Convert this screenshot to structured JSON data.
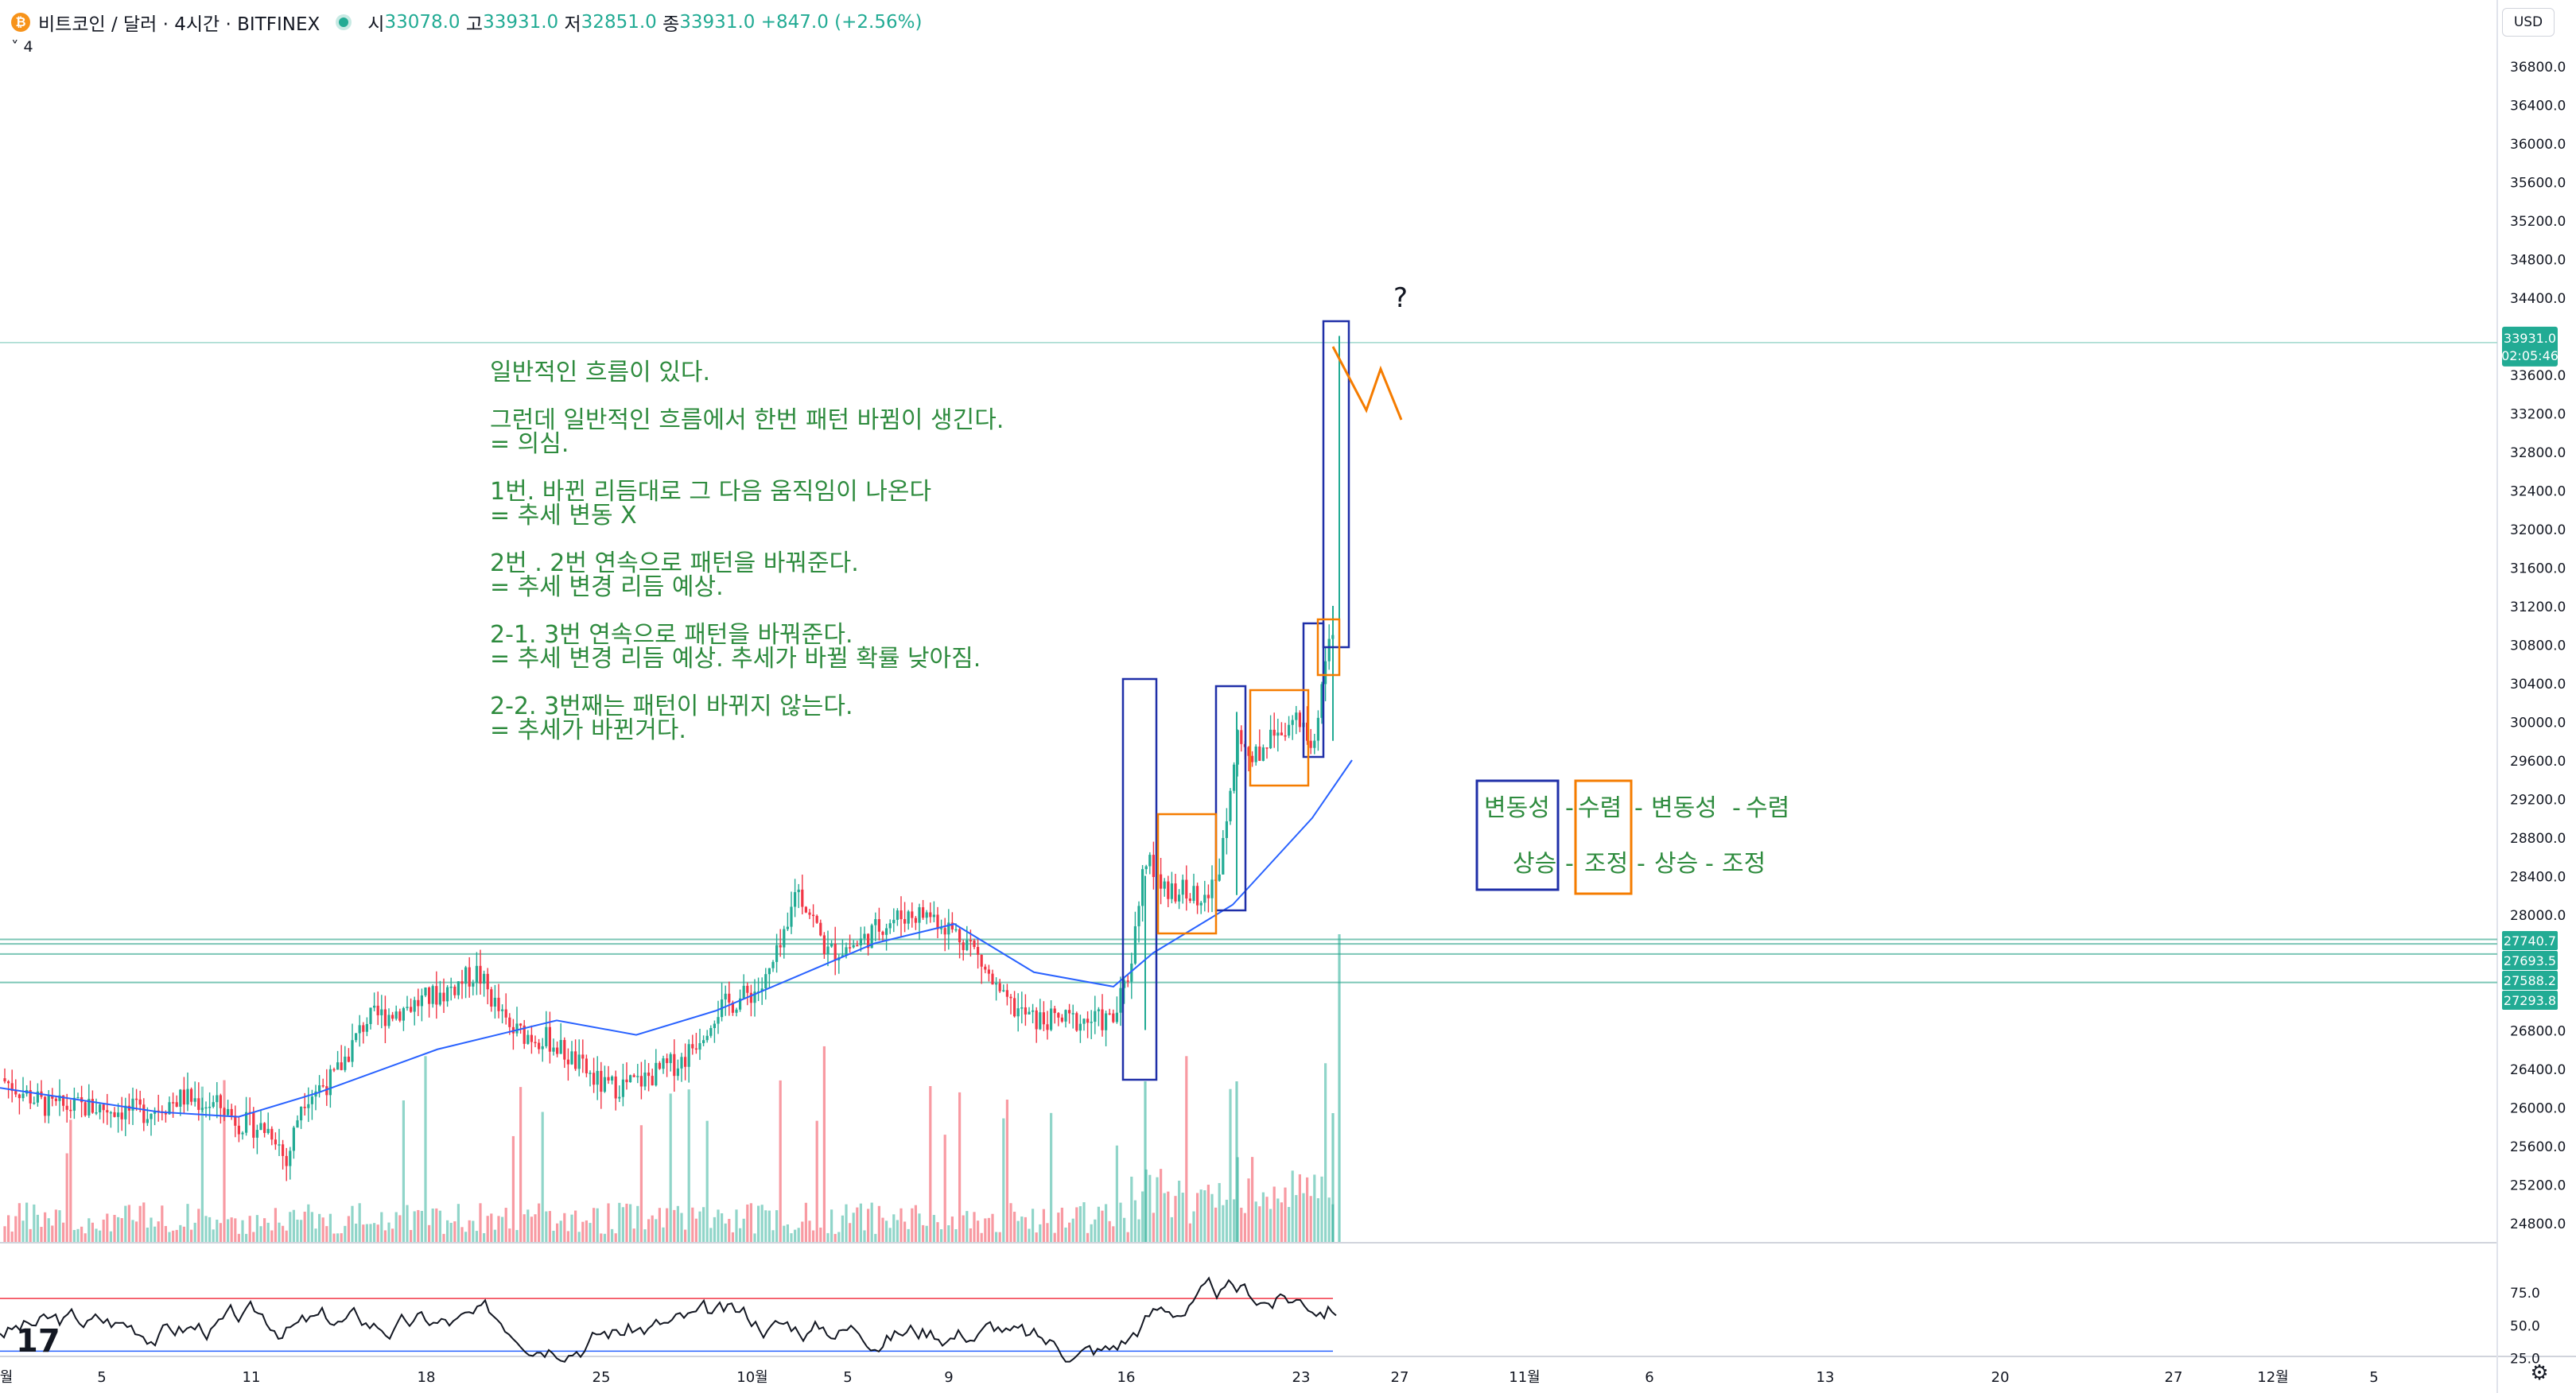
{
  "header": {
    "symbol": "비트코인 / 달러 · 4시간 · BITFINEX",
    "coin_icon": "bitcoin-icon",
    "open_label": "시",
    "open": "33078.0",
    "high_label": "고",
    "high": "33931.0",
    "low_label": "저",
    "low": "32851.0",
    "close_label": "종",
    "close": "33931.0",
    "change": "+847.0 (+2.56%)",
    "indicator_toggle": "˅ 4"
  },
  "currency": "USD",
  "colors": {
    "up": "#22ab94",
    "down": "#f23645",
    "ma": "#2962ff",
    "annotation_text": "#2e8b3e",
    "blue_box": "#1f2fa8",
    "orange_box": "#f57c00"
  },
  "price_axis": [
    "36800.0",
    "36400.0",
    "36000.0",
    "35600.0",
    "35200.0",
    "34800.0",
    "34400.0",
    "33600.0",
    "33200.0",
    "32800.0",
    "32400.0",
    "32000.0",
    "31600.0",
    "31200.0",
    "30800.0",
    "30400.0",
    "30000.0",
    "29600.0",
    "29200.0",
    "28800.0",
    "28400.0",
    "28000.0",
    "26800.0",
    "26400.0",
    "26000.0",
    "25600.0",
    "25200.0",
    "24800.0"
  ],
  "price_badges": {
    "last": "33931.0",
    "countdown": "02:05:46",
    "levels": [
      "27740.7",
      "27693.5",
      "27588.2",
      "27293.8"
    ]
  },
  "rsi_axis": [
    "75.0",
    "50.0",
    "25.0"
  ],
  "time_axis": [
    "월",
    "5",
    "11",
    "18",
    "25",
    "10월",
    "5",
    "9",
    "16",
    "23",
    "27",
    "11월",
    "6",
    "13",
    "20",
    "27",
    "12월",
    "5"
  ],
  "annotation": {
    "lines": [
      "일반적인 흐름이 있다.",
      "",
      "그런데 일반적인 흐름에서 한번 패턴 바뀜이 생긴다.",
      "= 의심.",
      "",
      "1번. 바뀐 리듬대로 그 다음 움직임이 나온다",
      "= 추세 변동 X",
      "",
      "2번 . 2번 연속으로 패턴을 바꿔준다.",
      "= 추세 변경 리듬 예상.",
      "",
      "2-1. 3번 연속으로 패턴을 바꿔준다.",
      "= 추세 변경 리듬 예상. 추세가 바뀔 확률 낮아짐.",
      "",
      "2-2. 3번째는 패턴이 바뀌지 않는다.",
      "= 추세가 바뀐거다."
    ],
    "question_mark": "?",
    "legend_row1": [
      "변동성",
      "-",
      "수렴",
      "-",
      "변동성",
      "-",
      "수렴"
    ],
    "legend_row2": [
      "상승",
      "-",
      "조정",
      "-",
      "상승",
      "-",
      "조정"
    ]
  },
  "chart_data": {
    "type": "candlestick",
    "symbol": "비트코인 / 달러",
    "interval": "4시간",
    "exchange": "BITFINEX",
    "last_price": 33931.0,
    "horizontal_levels": [
      27740.7,
      27693.5,
      27588.2,
      27293.8
    ],
    "price_range": [
      24600,
      37000
    ],
    "rsi_levels": [
      70,
      30
    ],
    "rsi_range": [
      20,
      90
    ],
    "ma_approx": [
      [
        0,
        26200
      ],
      [
        200,
        25950
      ],
      [
        300,
        25900
      ],
      [
        400,
        26150
      ],
      [
        550,
        26600
      ],
      [
        700,
        26900
      ],
      [
        800,
        26750
      ],
      [
        900,
        27000
      ],
      [
        1000,
        27350
      ],
      [
        1100,
        27700
      ],
      [
        1200,
        27900
      ],
      [
        1300,
        27400
      ],
      [
        1400,
        27250
      ],
      [
        1450,
        27600
      ],
      [
        1550,
        28100
      ],
      [
        1650,
        29000
      ],
      [
        1700,
        29600
      ]
    ],
    "close_path": [
      [
        0,
        26300
      ],
      [
        60,
        26000
      ],
      [
        120,
        26000
      ],
      [
        180,
        25950
      ],
      [
        230,
        26100
      ],
      [
        280,
        26000
      ],
      [
        300,
        25850
      ],
      [
        345,
        25750
      ],
      [
        360,
        25400
      ],
      [
        380,
        26100
      ],
      [
        420,
        26300
      ],
      [
        460,
        26900
      ],
      [
        500,
        27000
      ],
      [
        560,
        27200
      ],
      [
        600,
        27400
      ],
      [
        640,
        26800
      ],
      [
        690,
        26700
      ],
      [
        760,
        26200
      ],
      [
        800,
        26250
      ],
      [
        860,
        26500
      ],
      [
        900,
        27000
      ],
      [
        960,
        27250
      ],
      [
        990,
        27800
      ],
      [
        1000,
        28300
      ],
      [
        1020,
        28000
      ],
      [
        1040,
        27600
      ],
      [
        1080,
        27700
      ],
      [
        1110,
        27900
      ],
      [
        1140,
        28000
      ],
      [
        1170,
        28000
      ],
      [
        1220,
        27700
      ],
      [
        1260,
        27100
      ],
      [
        1300,
        26900
      ],
      [
        1330,
        26900
      ],
      [
        1400,
        26900
      ],
      [
        1420,
        27400
      ],
      [
        1440,
        28600
      ],
      [
        1460,
        28300
      ],
      [
        1500,
        28200
      ],
      [
        1530,
        28300
      ],
      [
        1555,
        29900
      ],
      [
        1575,
        29600
      ],
      [
        1600,
        29900
      ],
      [
        1630,
        30000
      ],
      [
        1650,
        29700
      ],
      [
        1665,
        30600
      ],
      [
        1676,
        30900
      ],
      [
        1684,
        33200
      ],
      [
        1700,
        33900
      ]
    ]
  }
}
